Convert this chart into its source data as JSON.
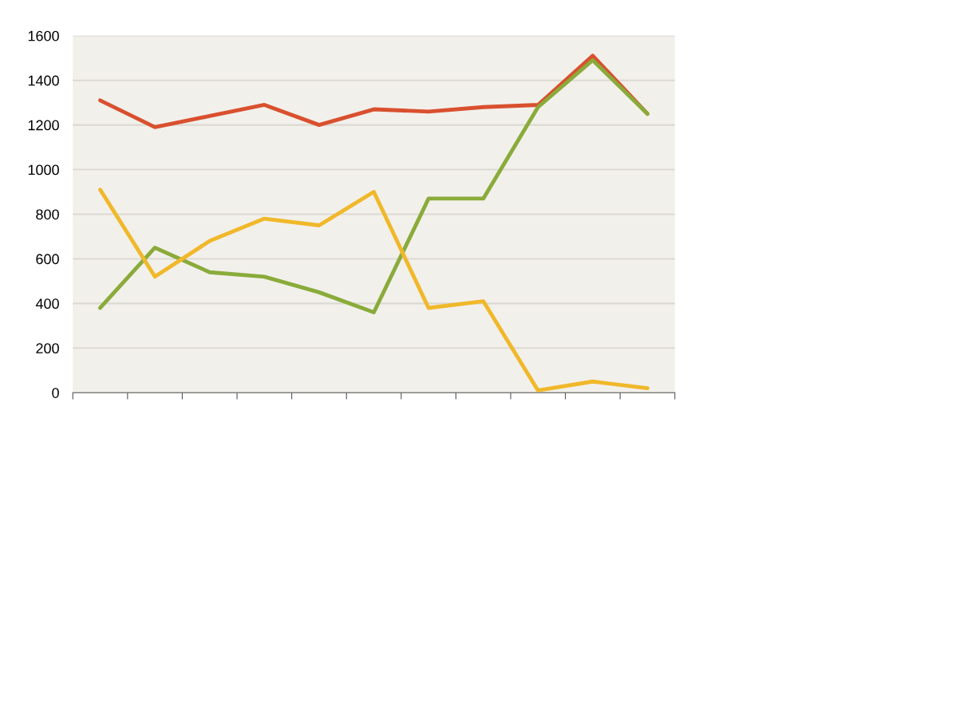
{
  "chart_data": {
    "type": "line",
    "categories": [
      null,
      null,
      null,
      null,
      null,
      null,
      null,
      null,
      null,
      null,
      null
    ],
    "series": [
      {
        "color": "#d9502e",
        "values": [
          1310,
          1190,
          1240,
          1290,
          1200,
          1270,
          1260,
          1280,
          1290,
          1510,
          1250
        ]
      },
      {
        "color": "#8aab3a",
        "values": [
          380,
          650,
          540,
          520,
          450,
          360,
          870,
          870,
          1280,
          1490,
          1250
        ]
      },
      {
        "color": "#f0b82a",
        "values": [
          910,
          520,
          680,
          780,
          750,
          900,
          380,
          410,
          10,
          50,
          20
        ]
      }
    ],
    "ylim": [
      0,
      1600
    ],
    "yticks": [
      0,
      200,
      400,
      600,
      800,
      1000,
      1200,
      1400,
      1600
    ],
    "grid": "y",
    "tick_labels": "y",
    "marker": "none",
    "line_style": "solid"
  }
}
